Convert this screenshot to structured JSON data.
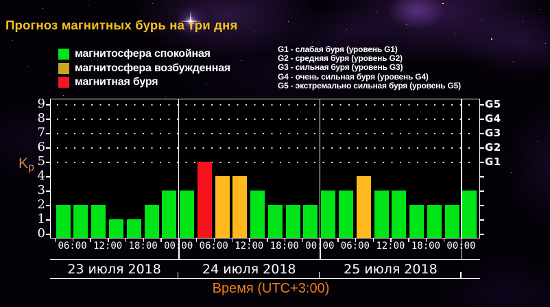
{
  "title": "Прогноз магнитных бурь на три дня",
  "legend": {
    "items": [
      {
        "label": "магнитосфера спокойная",
        "color": "#00e418"
      },
      {
        "label": "магнитосфера возбужденная",
        "color": "#c8a71b"
      },
      {
        "label": "магнитная буря",
        "color": "#fa141f"
      }
    ]
  },
  "storm_levels": [
    "G1 - слабая буря (уровень G1)",
    "G2 - средняя буря (уровень G2)",
    "G3 - сильная буря (уровень G3)",
    "G4 - очень сильная буря (уровень G4)",
    "G5 - экстремально сильная буря (уровень G5)"
  ],
  "chart_data": {
    "type": "bar",
    "title": "Прогноз магнитных бурь на три дня",
    "xlabel": "Время (UTC+3:00)",
    "ylabel": "Kp",
    "ylim": [
      0,
      9
    ],
    "yticks": [
      0,
      1,
      2,
      3,
      4,
      5,
      6,
      7,
      8,
      9
    ],
    "grid_dot_levels": [
      5,
      6,
      7,
      8,
      9
    ],
    "right_axis_labels": [
      {
        "kp": 9,
        "label": "G5"
      },
      {
        "kp": 8,
        "label": "G4"
      },
      {
        "kp": 7,
        "label": "G3"
      },
      {
        "kp": 6,
        "label": "G2"
      },
      {
        "kp": 5,
        "label": "G1"
      }
    ],
    "state_colors": {
      "quiet": "#00e418",
      "active": "#ffb91e",
      "storm": "#f7111d"
    },
    "x_tick_labels": [
      "06:00",
      "12:00",
      "18:00",
      "00:00",
      "06:00",
      "12:00",
      "18:00",
      "00:00",
      "06:00",
      "12:00",
      "18:00",
      "00:00"
    ],
    "days": [
      {
        "date": "23 июля 2018",
        "bars": [
          {
            "time": "03:00",
            "kp": 2,
            "state": "quiet"
          },
          {
            "time": "06:00",
            "kp": 2,
            "state": "quiet"
          },
          {
            "time": "09:00",
            "kp": 2,
            "state": "quiet"
          },
          {
            "time": "12:00",
            "kp": 1,
            "state": "quiet"
          },
          {
            "time": "15:00",
            "kp": 1,
            "state": "quiet"
          },
          {
            "time": "18:00",
            "kp": 2,
            "state": "quiet"
          },
          {
            "time": "21:00",
            "kp": 3,
            "state": "quiet"
          }
        ]
      },
      {
        "date": "24 июля 2018",
        "bars": [
          {
            "time": "00:00",
            "kp": 3,
            "state": "quiet"
          },
          {
            "time": "03:00",
            "kp": 5,
            "state": "storm"
          },
          {
            "time": "06:00",
            "kp": 4,
            "state": "active"
          },
          {
            "time": "09:00",
            "kp": 4,
            "state": "active"
          },
          {
            "time": "12:00",
            "kp": 3,
            "state": "quiet"
          },
          {
            "time": "15:00",
            "kp": 2,
            "state": "quiet"
          },
          {
            "time": "18:00",
            "kp": 2,
            "state": "quiet"
          },
          {
            "time": "21:00",
            "kp": 2,
            "state": "quiet"
          }
        ]
      },
      {
        "date": "25 июля 2018",
        "bars": [
          {
            "time": "00:00",
            "kp": 3,
            "state": "quiet"
          },
          {
            "time": "03:00",
            "kp": 3,
            "state": "quiet"
          },
          {
            "time": "06:00",
            "kp": 4,
            "state": "active"
          },
          {
            "time": "09:00",
            "kp": 3,
            "state": "quiet"
          },
          {
            "time": "12:00",
            "kp": 3,
            "state": "quiet"
          },
          {
            "time": "15:00",
            "kp": 2,
            "state": "quiet"
          },
          {
            "time": "18:00",
            "kp": 2,
            "state": "quiet"
          },
          {
            "time": "21:00",
            "kp": 2,
            "state": "quiet"
          }
        ]
      },
      {
        "date": "",
        "bars": [
          {
            "time": "00:00",
            "kp": 3,
            "state": "quiet"
          }
        ]
      }
    ]
  }
}
